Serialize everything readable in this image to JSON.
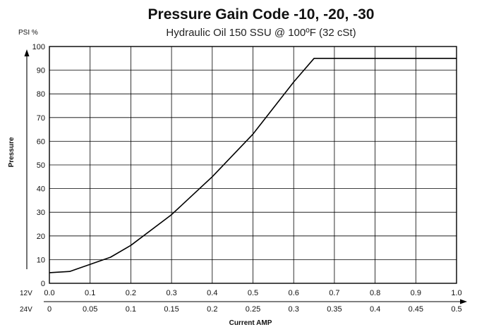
{
  "chart_data": {
    "type": "line",
    "title": "Pressure Gain Code -10, -20, -30",
    "subtitle": "Hydraulic Oil 150 SSU @ 100ºF (32 cSt)",
    "y_unit_label": "PSI %",
    "ylabel": "Pressure",
    "xlabel": "Current AMP",
    "xlim": [
      0,
      1.0
    ],
    "ylim": [
      0,
      100
    ],
    "grid": true,
    "y_ticks": [
      "0",
      "10",
      "20",
      "30",
      "40",
      "50",
      "60",
      "70",
      "80",
      "90",
      "100"
    ],
    "x_axes": [
      {
        "name": "12V",
        "ticks": [
          "0.0",
          "0.1",
          "0.2",
          "0.3",
          "0.4",
          "0.5",
          "0.6",
          "0.7",
          "0.8",
          "0.9",
          "1.0"
        ]
      },
      {
        "name": "24V",
        "ticks": [
          "0",
          "0.05",
          "0.1",
          "0.15",
          "0.2",
          "0.25",
          "0.3",
          "0.35",
          "0.4",
          "0.45",
          "0.5"
        ]
      }
    ],
    "series": [
      {
        "x": [
          0.0,
          0.05,
          0.1,
          0.15,
          0.2,
          0.3,
          0.4,
          0.5,
          0.6,
          0.65,
          1.0
        ],
        "y": [
          4.5,
          5,
          8,
          11,
          16,
          29,
          45,
          63,
          85,
          95,
          95
        ]
      }
    ]
  }
}
